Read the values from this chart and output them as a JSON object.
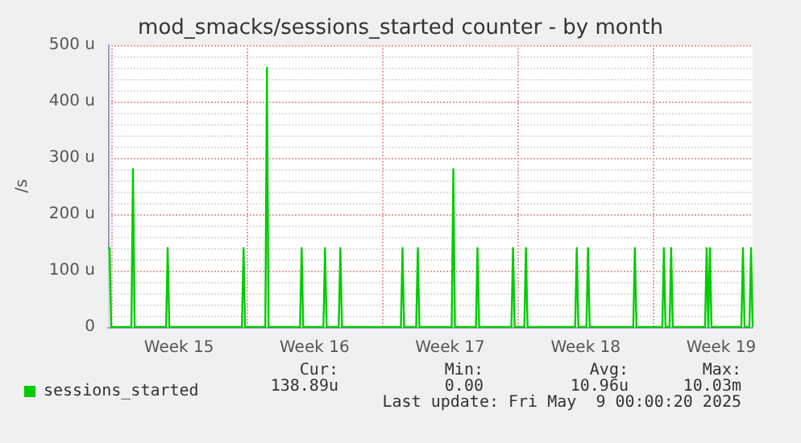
{
  "chart_data": {
    "type": "area",
    "title": "mod_smacks/sessions_started counter - by month",
    "ylabel": "/s",
    "xlim": [
      "2025-04-06T20:00",
      "2025-05-10T03:00"
    ],
    "xticks": [
      {
        "value": "2025-04-07",
        "label": null
      },
      {
        "value": "2025-04-10T12:00",
        "label": "Week 15"
      },
      {
        "value": "2025-04-14",
        "label": null
      },
      {
        "value": "2025-04-17T12:00",
        "label": "Week 16"
      },
      {
        "value": "2025-04-21",
        "label": null
      },
      {
        "value": "2025-04-24T12:00",
        "label": "Week 17"
      },
      {
        "value": "2025-04-28",
        "label": null
      },
      {
        "value": "2025-05-01T12:00",
        "label": "Week 18"
      },
      {
        "value": "2025-05-05",
        "label": null
      },
      {
        "value": "2025-05-08T12:00",
        "label": "Week 19"
      }
    ],
    "ylim": [
      0,
      500
    ],
    "yticks": [
      {
        "value": 0,
        "label": "0"
      },
      {
        "value": 100,
        "label": "100 u"
      },
      {
        "value": 200,
        "label": "200 u"
      },
      {
        "value": 300,
        "label": "300 u"
      },
      {
        "value": 400,
        "label": "400 u"
      },
      {
        "value": 500,
        "label": "500 u"
      }
    ],
    "grid": true,
    "legend": "bottom left",
    "marker": "none",
    "line_style": "solid",
    "series": [
      {
        "name": "sessions_started",
        "color": "#00cc00",
        "x": [
          "2025-04-06T20:00",
          "2025-04-06T22:00",
          "2025-04-07T00:00",
          "2025-04-08T01:00",
          "2025-04-08T03:00",
          "2025-04-08T05:00",
          "2025-04-09T20:00",
          "2025-04-09T22:00",
          "2025-04-10T00:00",
          "2025-04-13T18:00",
          "2025-04-13T20:00",
          "2025-04-13T22:00",
          "2025-04-14T23:00",
          "2025-04-15T01:00",
          "2025-04-15T03:00",
          "2025-04-16T18:00",
          "2025-04-16T20:00",
          "2025-04-16T22:00",
          "2025-04-17T23:00",
          "2025-04-18T01:00",
          "2025-04-18T03:00",
          "2025-04-18T18:00",
          "2025-04-18T20:00",
          "2025-04-18T22:00",
          "2025-04-21T23:00",
          "2025-04-22T01:00",
          "2025-04-22T03:00",
          "2025-04-22T18:00",
          "2025-04-22T20:00",
          "2025-04-22T22:00",
          "2025-04-24T14:00",
          "2025-04-24T16:00",
          "2025-04-24T18:00",
          "2025-04-25T20:00",
          "2025-04-25T22:00",
          "2025-04-26T00:00",
          "2025-04-27T16:00",
          "2025-04-27T18:00",
          "2025-04-27T20:00",
          "2025-04-28T08:00",
          "2025-04-28T10:00",
          "2025-04-28T12:00",
          "2025-04-30T23:00",
          "2025-05-01T01:00",
          "2025-05-01T03:00",
          "2025-05-01T13:00",
          "2025-05-01T15:00",
          "2025-05-01T17:00",
          "2025-05-03T23:00",
          "2025-05-04T01:00",
          "2025-05-04T03:00",
          "2025-05-05T11:00",
          "2025-05-05T13:00",
          "2025-05-05T15:00",
          "2025-05-05T20:00",
          "2025-05-05T22:00",
          "2025-05-06T00:00",
          "2025-05-07T16:00",
          "2025-05-07T18:00",
          "2025-05-07T20:00",
          "2025-05-07T22:00",
          "2025-05-08T00:00",
          "2025-05-09T13:00",
          "2025-05-09T15:00",
          "2025-05-09T17:00",
          "2025-05-09T23:00",
          "2025-05-10T01:00",
          "2025-05-10T03:00"
        ],
        "values": [
          140,
          140,
          0,
          0,
          280,
          0,
          0,
          140,
          0,
          0,
          140,
          0,
          0,
          460,
          0,
          0,
          140,
          0,
          0,
          140,
          0,
          0,
          140,
          0,
          0,
          140,
          0,
          0,
          140,
          0,
          0,
          280,
          0,
          0,
          140,
          0,
          0,
          140,
          0,
          0,
          140,
          0,
          0,
          140,
          0,
          0,
          140,
          0,
          0,
          140,
          0,
          0,
          140,
          0,
          0,
          140,
          0,
          0,
          140,
          0,
          140,
          0,
          0,
          140,
          0,
          0,
          140,
          0
        ]
      }
    ],
    "annotations": [
      "Cur:",
      "Min:",
      "Avg:",
      "Max:",
      "138.89u",
      "0.00",
      "10.96u",
      "10.03m",
      "Last update: Fri May  9 00:00:20 2025"
    ]
  }
}
